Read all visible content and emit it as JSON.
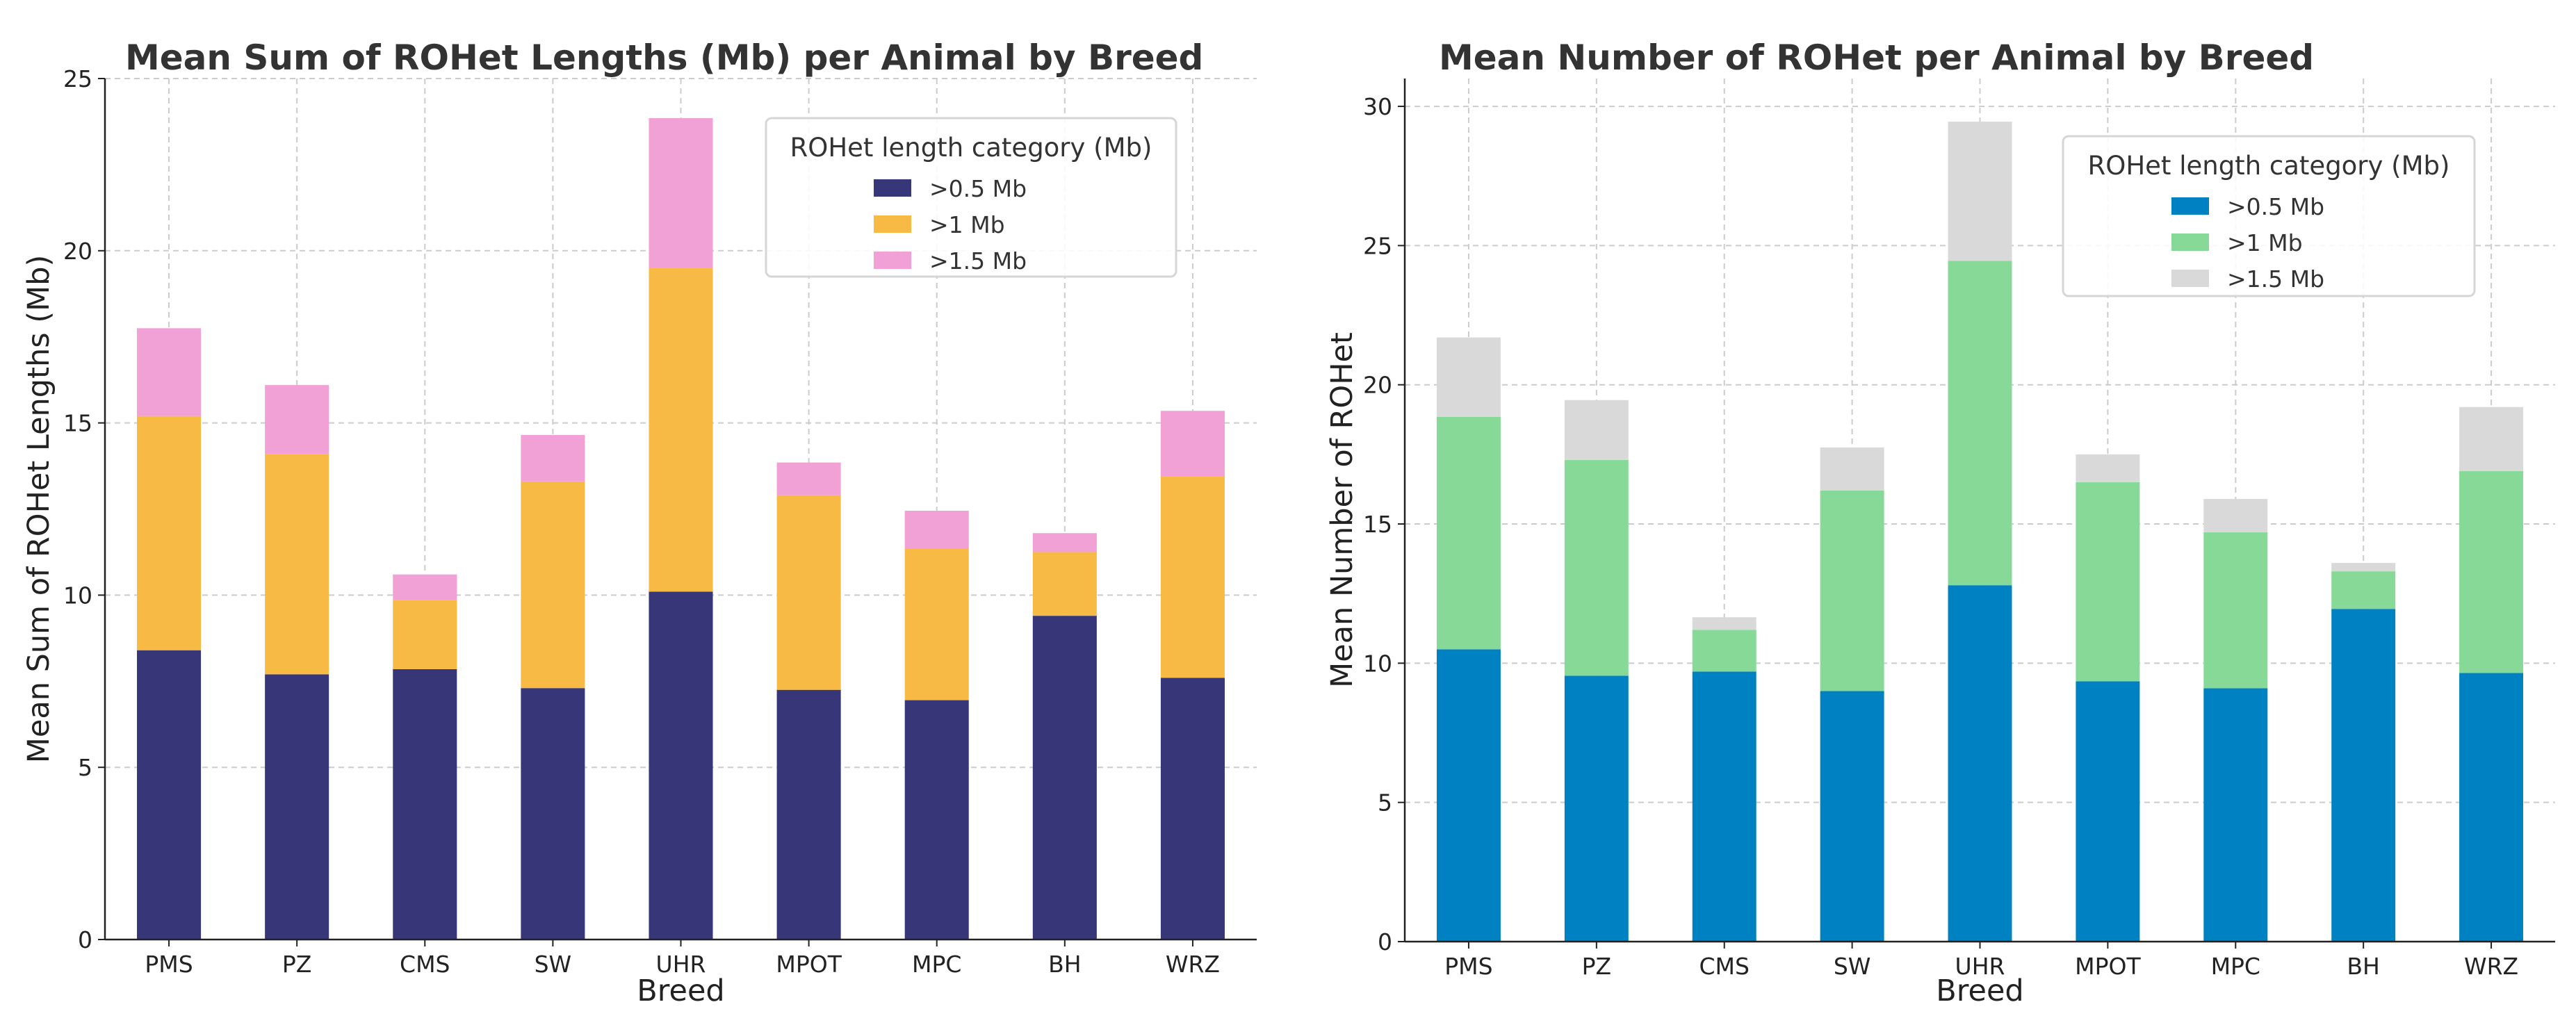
{
  "chart_data": [
    {
      "type": "bar",
      "stacked": true,
      "title": "Mean Sum of ROHet Lengths (Mb) per Animal by Breed",
      "xlabel": "Breed",
      "ylabel": "Mean Sum of ROHet Lengths (Mb)",
      "ylim": [
        0,
        25
      ],
      "yticks": [
        0,
        5,
        10,
        15,
        20,
        25
      ],
      "grid": true,
      "legend_title": "ROHet length category (Mb)",
      "legend_position": "top-right",
      "categories": [
        "PMS",
        "PZ",
        "CMS",
        "SW",
        "UHR",
        "MPOT",
        "MPC",
        "BH",
        "WRZ"
      ],
      "series": [
        {
          "name": ">0.5 Mb",
          "color": "#363679",
          "values": [
            8.4,
            7.7,
            7.85,
            7.3,
            10.1,
            7.25,
            6.95,
            9.4,
            7.6
          ]
        },
        {
          "name": ">1 Mb",
          "color": "#f7bb45",
          "values": [
            6.8,
            6.4,
            2.0,
            6.0,
            9.4,
            5.65,
            4.4,
            1.85,
            5.85
          ]
        },
        {
          "name": ">1.5 Mb",
          "color": "#f1a1d6",
          "values": [
            2.55,
            2.0,
            0.75,
            1.35,
            4.35,
            0.95,
            1.1,
            0.55,
            1.9
          ]
        }
      ]
    },
    {
      "type": "bar",
      "stacked": true,
      "title": "Mean Number of ROHet per Animal by Breed",
      "xlabel": "Breed",
      "ylabel": "Mean Number of ROHet",
      "ylim": [
        0,
        31
      ],
      "yticks": [
        0,
        5,
        10,
        15,
        20,
        25,
        30
      ],
      "grid": true,
      "legend_title": "ROHet length category (Mb)",
      "legend_position": "top-right",
      "categories": [
        "PMS",
        "PZ",
        "CMS",
        "SW",
        "UHR",
        "MPOT",
        "MPC",
        "BH",
        "WRZ"
      ],
      "series": [
        {
          "name": ">0.5 Mb",
          "color": "#0081c1",
          "values": [
            10.5,
            9.55,
            9.7,
            9.0,
            12.8,
            9.35,
            9.1,
            11.95,
            9.65
          ]
        },
        {
          "name": ">1 Mb",
          "color": "#86d996",
          "values": [
            8.35,
            7.75,
            1.5,
            7.2,
            11.65,
            7.15,
            5.6,
            1.35,
            7.25
          ]
        },
        {
          "name": ">1.5 Mb",
          "color": "#d9d9d9",
          "values": [
            2.85,
            2.15,
            0.45,
            1.55,
            5.0,
            1.0,
            1.2,
            0.3,
            2.3
          ]
        }
      ]
    }
  ]
}
